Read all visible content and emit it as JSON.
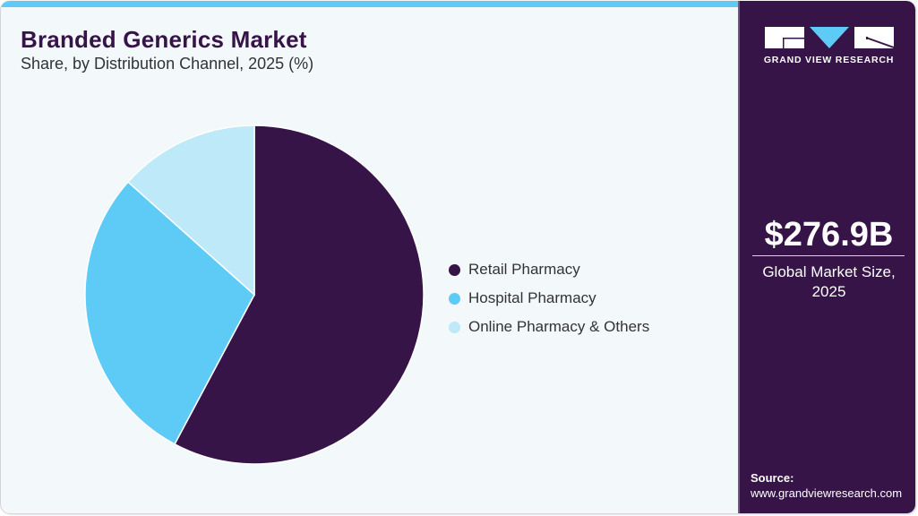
{
  "header": {
    "title": "Branded Generics Market",
    "subtitle": "Share, by Distribution Channel, 2025 (%)"
  },
  "colors": {
    "background": "#f3f8fb",
    "accent_bar": "#5ecbf6",
    "brand_dark": "#371447",
    "retail": "#371447",
    "hospital": "#5ecbf6",
    "online": "#bde9f9"
  },
  "legend": [
    {
      "label": "Retail Pharmacy",
      "color": "#371447"
    },
    {
      "label": "Hospital Pharmacy",
      "color": "#5ecbf6"
    },
    {
      "label": "Online Pharmacy & Others",
      "color": "#bde9f9"
    }
  ],
  "sidebar": {
    "logo_text": "GRAND VIEW RESEARCH",
    "stat_value": "$276.9B",
    "stat_label_line1": "Global Market Size,",
    "stat_label_line2": "2025",
    "source_heading": "Source:",
    "source_url": "www.grandviewresearch.com"
  },
  "chart_data": {
    "type": "pie",
    "title": "Branded Generics Market",
    "subtitle": "Share, by Distribution Channel, 2025 (%)",
    "categories": [
      "Retail Pharmacy",
      "Hospital Pharmacy",
      "Online Pharmacy & Others"
    ],
    "values": [
      57.8,
      28.8,
      13.4
    ],
    "colors": [
      "#371447",
      "#5ecbf6",
      "#bde9f9"
    ],
    "start_angle": "12 o'clock, clockwise",
    "legend_position": "right",
    "data_labels": false
  }
}
